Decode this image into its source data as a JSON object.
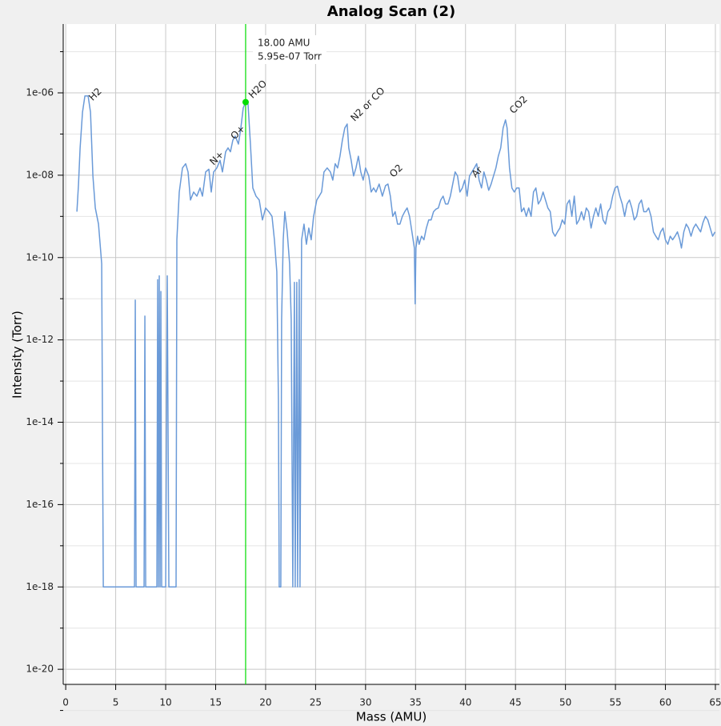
{
  "chart_data": {
    "type": "line",
    "title": "Analog Scan (2)",
    "x_label": "Mass (AMU)",
    "y_label": "Intensity (Torr)",
    "yscale": "log",
    "grid": true,
    "xlim": [
      -0.25,
      65.4
    ],
    "ylim": [
      4.3e-21,
      4.7e-05
    ],
    "xticks": [
      0,
      5,
      10,
      15,
      20,
      25,
      30,
      35,
      40,
      45,
      50,
      55,
      60,
      65
    ],
    "yticks": [
      {
        "value": 1e-20,
        "label": "1e-20"
      },
      {
        "value": 1e-18,
        "label": "1e-18"
      },
      {
        "value": 1e-16,
        "label": "1e-16"
      },
      {
        "value": 1e-14,
        "label": "1e-14"
      },
      {
        "value": 1e-12,
        "label": "1e-12"
      },
      {
        "value": 1e-10,
        "label": "1e-10"
      },
      {
        "value": 1e-08,
        "label": "1e-08"
      },
      {
        "value": 1e-06,
        "label": "1e-06"
      }
    ],
    "y_minor_ticks": [
      1e-21,
      1e-19,
      1e-17,
      1e-15,
      1e-13,
      1e-11,
      1e-09,
      1e-07,
      1e-05
    ],
    "x": [
      1.12,
      1.28,
      1.44,
      1.68,
      1.92,
      2.24,
      2.48,
      2.72,
      2.96,
      3.28,
      3.6,
      3.68,
      3.76,
      6.88,
      6.96,
      7.04,
      7.84,
      7.92,
      8.0,
      9.12,
      9.2,
      9.28,
      9.36,
      9.44,
      9.52,
      9.6,
      10.0,
      10.16,
      10.32,
      11.04,
      11.12,
      11.36,
      11.68,
      12.0,
      12.24,
      12.48,
      12.8,
      13.12,
      13.44,
      13.68,
      14.0,
      14.32,
      14.56,
      14.8,
      15.12,
      15.44,
      15.68,
      16.0,
      16.24,
      16.48,
      16.72,
      16.96,
      17.28,
      17.52,
      17.76,
      18.0,
      18.24,
      18.48,
      18.72,
      19.04,
      19.36,
      19.68,
      20.0,
      20.32,
      20.64,
      20.88,
      21.12,
      21.28,
      21.36,
      21.52,
      21.6,
      21.76,
      21.92,
      22.16,
      22.4,
      22.56,
      22.72,
      22.88,
      22.96,
      23.12,
      23.2,
      23.36,
      23.44,
      23.6,
      23.84,
      24.08,
      24.32,
      24.56,
      24.8,
      25.12,
      25.36,
      25.6,
      25.84,
      26.16,
      26.48,
      26.72,
      26.96,
      27.2,
      27.44,
      27.68,
      27.92,
      28.16,
      28.32,
      28.56,
      28.8,
      29.04,
      29.28,
      29.52,
      29.76,
      30.0,
      30.32,
      30.56,
      30.8,
      31.04,
      31.36,
      31.68,
      32.0,
      32.24,
      32.48,
      32.72,
      32.96,
      33.2,
      33.44,
      33.68,
      33.92,
      34.16,
      34.4,
      34.64,
      34.88,
      34.96,
      35.04,
      35.2,
      35.36,
      35.6,
      35.84,
      36.08,
      36.32,
      36.56,
      36.8,
      37.04,
      37.28,
      37.52,
      37.76,
      38.0,
      38.24,
      38.48,
      38.72,
      38.96,
      39.2,
      39.44,
      39.68,
      39.92,
      40.16,
      40.4,
      40.64,
      40.88,
      41.12,
      41.36,
      41.6,
      41.84,
      42.08,
      42.32,
      42.56,
      42.8,
      43.04,
      43.28,
      43.52,
      43.76,
      44.0,
      44.16,
      44.4,
      44.64,
      44.88,
      45.12,
      45.36,
      45.6,
      45.84,
      46.08,
      46.32,
      46.56,
      46.8,
      47.04,
      47.28,
      47.52,
      47.76,
      48.0,
      48.24,
      48.48,
      48.72,
      48.96,
      49.2,
      49.44,
      49.68,
      49.92,
      50.16,
      50.4,
      50.64,
      50.88,
      51.12,
      51.36,
      51.6,
      51.84,
      52.08,
      52.32,
      52.56,
      52.8,
      53.04,
      53.28,
      53.52,
      53.76,
      54.0,
      54.24,
      54.48,
      54.72,
      54.96,
      55.2,
      55.44,
      55.68,
      55.92,
      56.16,
      56.4,
      56.64,
      56.88,
      57.12,
      57.36,
      57.6,
      57.84,
      58.08,
      58.32,
      58.56,
      58.8,
      59.04,
      59.28,
      59.52,
      59.76,
      60.0,
      60.24,
      60.48,
      60.72,
      60.96,
      61.2,
      61.44,
      61.6,
      61.84,
      62.08,
      62.32,
      62.56,
      62.8,
      63.04,
      63.28,
      63.52,
      63.76,
      64.0,
      64.24,
      64.48,
      64.72,
      64.96
    ],
    "series": [
      {
        "color": "#6a9ad8",
        "values": [
          1.3e-09,
          6.1e-09,
          4.6e-08,
          3.4e-07,
          8.4e-07,
          8.4e-07,
          3.4e-07,
          9.6e-09,
          1.6e-09,
          6.5e-10,
          7e-11,
          5.9e-15,
          1e-18,
          1e-18,
          9.3e-12,
          1e-18,
          1e-18,
          3.8e-12,
          1e-18,
          1e-18,
          2.9e-11,
          1e-18,
          3.6e-11,
          1e-18,
          1.5e-11,
          1e-18,
          1e-18,
          3.6e-11,
          1e-18,
          1e-18,
          2.7e-10,
          3.9e-09,
          1.5e-08,
          1.9e-08,
          1.2e-08,
          2.5e-09,
          3.9e-09,
          3.1e-09,
          4.9e-09,
          3.1e-09,
          1.2e-08,
          1.4e-08,
          3.9e-09,
          1.2e-08,
          1.5e-08,
          2.3e-08,
          1.2e-08,
          3.7e-08,
          4.6e-08,
          3.7e-08,
          7.1e-08,
          8.9e-08,
          5.7e-08,
          1.4e-07,
          4.3e-07,
          5.95e-07,
          5.4e-07,
          5.7e-08,
          4.9e-09,
          3.1e-09,
          2.5e-09,
          8.2e-10,
          1.6e-09,
          1.3e-09,
          1e-09,
          2.7e-10,
          4.5e-11,
          3.5e-14,
          1e-18,
          1e-18,
          3.1e-12,
          2.7e-10,
          1.3e-09,
          4.2e-10,
          7e-11,
          3.1e-12,
          1e-18,
          2.5e-11,
          1e-18,
          2.5e-11,
          1e-18,
          2.9e-11,
          1e-18,
          2.7e-10,
          6.5e-10,
          2.1e-10,
          5.2e-10,
          2.7e-10,
          1e-09,
          2.5e-09,
          3.1e-09,
          3.9e-09,
          1.2e-08,
          1.5e-08,
          1.2e-08,
          7.6e-09,
          1.9e-08,
          1.5e-08,
          2.9e-08,
          7.1e-08,
          1.4e-07,
          1.75e-07,
          4.6e-08,
          2.3e-08,
          9.6e-09,
          1.5e-08,
          2.9e-08,
          1.2e-08,
          7.6e-09,
          1.5e-08,
          9.6e-09,
          3.9e-09,
          4.9e-09,
          3.9e-09,
          6.1e-09,
          3.1e-09,
          5.6e-09,
          6.1e-09,
          3.1e-09,
          1e-09,
          1.3e-09,
          6.5e-10,
          6.5e-10,
          1e-09,
          1.3e-09,
          1.6e-09,
          1e-09,
          4.2e-10,
          1.7e-10,
          7.5e-12,
          1.7e-10,
          3.3e-10,
          2.1e-10,
          3.3e-10,
          2.7e-10,
          5.2e-10,
          8.2e-10,
          8.2e-10,
          1.3e-09,
          1.5e-09,
          1.6e-09,
          2.5e-09,
          3.1e-09,
          2e-09,
          2e-09,
          3.1e-09,
          6.1e-09,
          1.2e-08,
          9.6e-09,
          3.9e-09,
          4.9e-09,
          7.6e-09,
          3.1e-09,
          9.6e-09,
          1.2e-08,
          1.5e-08,
          1.9e-08,
          7.6e-09,
          4.9e-09,
          1.2e-08,
          7.6e-09,
          4.3e-09,
          6.1e-09,
          9.6e-09,
          1.5e-08,
          2.9e-08,
          4.6e-08,
          1.4e-07,
          2.2e-07,
          1.4e-07,
          1.5e-08,
          4.9e-09,
          3.9e-09,
          4.9e-09,
          4.9e-09,
          1.3e-09,
          1.6e-09,
          1e-09,
          1.6e-09,
          1e-09,
          3.9e-09,
          4.9e-09,
          2e-09,
          2.5e-09,
          3.9e-09,
          2.5e-09,
          1.6e-09,
          1.3e-09,
          4.2e-10,
          3.3e-10,
          4.2e-10,
          5.2e-10,
          8.2e-10,
          6.5e-10,
          2e-09,
          2.5e-09,
          1e-09,
          3.1e-09,
          6.5e-10,
          8.2e-10,
          1.3e-09,
          8.2e-10,
          1.6e-09,
          1.3e-09,
          5.2e-10,
          1e-09,
          1.6e-09,
          1e-09,
          2e-09,
          8.2e-10,
          6.5e-10,
          1.3e-09,
          1.6e-09,
          3.1e-09,
          4.9e-09,
          5.4e-09,
          3.1e-09,
          2e-09,
          1e-09,
          2e-09,
          2.5e-09,
          1.6e-09,
          8.2e-10,
          1e-09,
          2e-09,
          2.5e-09,
          1.3e-09,
          1.3e-09,
          1.6e-09,
          1e-09,
          4.2e-10,
          3.3e-10,
          2.7e-10,
          4.2e-10,
          5.2e-10,
          2.7e-10,
          2.1e-10,
          3.3e-10,
          2.7e-10,
          3.3e-10,
          4.2e-10,
          2.7e-10,
          1.7e-10,
          4.2e-10,
          6.5e-10,
          5.2e-10,
          3.3e-10,
          5.2e-10,
          6.5e-10,
          5.2e-10,
          4.2e-10,
          7.1e-10,
          1e-09,
          8.2e-10,
          5.2e-10,
          3.3e-10,
          4.2e-10
        ]
      }
    ],
    "annotations": [
      {
        "text": "H2",
        "x": 2.5,
        "y": 7e-07
      },
      {
        "text": "N+",
        "x": 14.6,
        "y": 1.9e-08
      },
      {
        "text": "O+",
        "x": 16.7,
        "y": 8e-08
      },
      {
        "text": "H2O",
        "x": 18.5,
        "y": 8e-07
      },
      {
        "text": "N2 or CO",
        "x": 28.7,
        "y": 2.2e-07
      },
      {
        "text": "O2",
        "x": 32.6,
        "y": 9.6e-09
      },
      {
        "text": "Ar",
        "x": 40.8,
        "y": 9.6e-09
      },
      {
        "text": "CO2",
        "x": 44.6,
        "y": 3.4e-07
      }
    ],
    "cursor": {
      "color": "#00dd00",
      "x": 18.0,
      "y": 5.95e-07,
      "x_text": "18.00 AMU",
      "y_text": "5.95e-07 Torr"
    }
  }
}
